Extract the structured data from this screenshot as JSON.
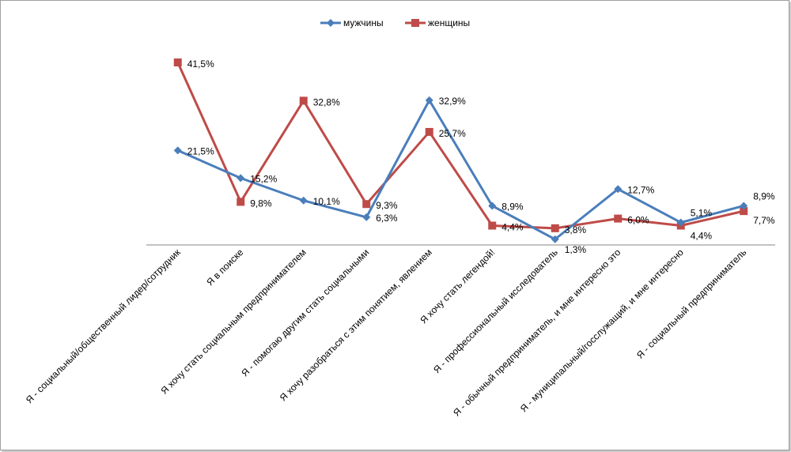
{
  "chart_data": {
    "type": "line",
    "title": "",
    "xlabel": "",
    "ylabel": "",
    "ylim": [
      0,
      45
    ],
    "grid": false,
    "legend_position": "top-center",
    "categories": [
      "Я - социальный/общественный лидер/сотрудник",
      "Я в поиске",
      "Я хочу стать социальным предпринимателем",
      "Я - помогаю другим стать социальными",
      "Я хочу разобраться с этим понятием, явлением",
      "Я хочу стать легендой!",
      "Я - профессиональный исследователь",
      "Я - обычный предприниматель, и мне интересно это",
      "Я - муниципальный/госслужащий, и мне интересно",
      "Я - социальный предприниматель"
    ],
    "series": [
      {
        "name": "мужчины",
        "color": "#4a7ebb",
        "marker": "diamond",
        "values": [
          21.5,
          15.2,
          10.1,
          6.3,
          32.9,
          8.9,
          1.3,
          12.7,
          5.1,
          8.9
        ],
        "labels": [
          "21,5%",
          "15,2%",
          "10,1%",
          "6,3%",
          "32,9%",
          "8,9%",
          "1,3%",
          "12,7%",
          "5,1%",
          "8,9%"
        ]
      },
      {
        "name": "женщины",
        "color": "#be4b48",
        "marker": "square",
        "values": [
          41.5,
          9.8,
          32.8,
          9.3,
          25.7,
          4.4,
          3.8,
          6.0,
          4.4,
          7.7
        ],
        "labels": [
          "41,5%",
          "9,8%",
          "32,8%",
          "9,3%",
          "25,7%",
          "4,4%",
          "3,8%",
          "6,0%",
          "4,4%",
          "7,7%"
        ]
      }
    ]
  }
}
